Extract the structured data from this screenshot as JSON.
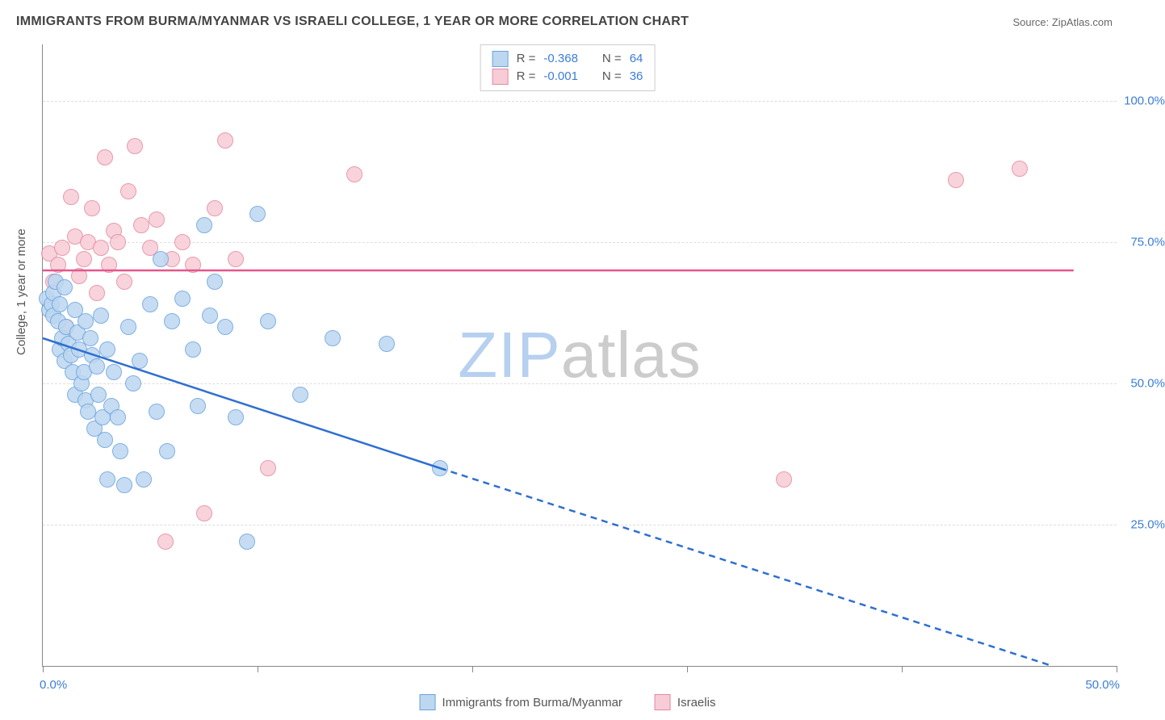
{
  "title": "IMMIGRANTS FROM BURMA/MYANMAR VS ISRAELI COLLEGE, 1 YEAR OR MORE CORRELATION CHART",
  "source_label": "Source: ",
  "source_name": "ZipAtlas.com",
  "y_axis_title": "College, 1 year or more",
  "watermark_zip": "ZIP",
  "watermark_atlas": "atlas",
  "watermark_colors": {
    "zip": "#b7d0ef",
    "atlas": "#cccccc"
  },
  "chart": {
    "type": "scatter",
    "background_color": "#ffffff",
    "grid_color": "#dddddd",
    "axis_color": "#888888",
    "xlim": [
      0,
      50
    ],
    "ylim": [
      0,
      110
    ],
    "x_ticks": [
      0,
      10,
      20,
      30,
      40,
      50
    ],
    "x_tick_labels": {
      "0": "0.0%",
      "50": "50.0%"
    },
    "y_ticks": [
      25,
      50,
      75,
      100
    ],
    "y_tick_labels": {
      "25": "25.0%",
      "50": "50.0%",
      "75": "75.0%",
      "100": "100.0%"
    },
    "marker_radius": 9,
    "series": {
      "burma": {
        "label": "Immigrants from Burma/Myanmar",
        "fill": "#bdd7f0",
        "stroke": "#6aa3de",
        "R_label": "R = ",
        "R_value": "-0.368",
        "N_label": "N = ",
        "N_value": "64",
        "trend": {
          "solid": {
            "x1": 0,
            "y1": 58,
            "x2": 18.5,
            "y2": 35
          },
          "dashed": {
            "x1": 18.5,
            "y1": 35,
            "x2": 47,
            "y2": 0
          },
          "color": "#2f6fd0",
          "width": 2.5
        },
        "points": [
          [
            0.2,
            65
          ],
          [
            0.3,
            63
          ],
          [
            0.4,
            64
          ],
          [
            0.5,
            62
          ],
          [
            0.5,
            66
          ],
          [
            0.6,
            68
          ],
          [
            0.7,
            61
          ],
          [
            0.8,
            64
          ],
          [
            0.8,
            56
          ],
          [
            0.9,
            58
          ],
          [
            1.0,
            67
          ],
          [
            1.0,
            54
          ],
          [
            1.1,
            60
          ],
          [
            1.2,
            57
          ],
          [
            1.3,
            55
          ],
          [
            1.4,
            52
          ],
          [
            1.5,
            63
          ],
          [
            1.5,
            48
          ],
          [
            1.6,
            59
          ],
          [
            1.7,
            56
          ],
          [
            1.8,
            50
          ],
          [
            1.9,
            52
          ],
          [
            2.0,
            61
          ],
          [
            2.0,
            47
          ],
          [
            2.1,
            45
          ],
          [
            2.2,
            58
          ],
          [
            2.3,
            55
          ],
          [
            2.4,
            42
          ],
          [
            2.5,
            53
          ],
          [
            2.6,
            48
          ],
          [
            2.7,
            62
          ],
          [
            2.8,
            44
          ],
          [
            2.9,
            40
          ],
          [
            3.0,
            33
          ],
          [
            3.0,
            56
          ],
          [
            3.2,
            46
          ],
          [
            3.3,
            52
          ],
          [
            3.5,
            44
          ],
          [
            3.6,
            38
          ],
          [
            3.8,
            32
          ],
          [
            4.0,
            60
          ],
          [
            4.2,
            50
          ],
          [
            4.5,
            54
          ],
          [
            4.7,
            33
          ],
          [
            5.0,
            64
          ],
          [
            5.3,
            45
          ],
          [
            5.5,
            72
          ],
          [
            5.8,
            38
          ],
          [
            6.0,
            61
          ],
          [
            6.5,
            65
          ],
          [
            7.0,
            56
          ],
          [
            7.2,
            46
          ],
          [
            7.5,
            78
          ],
          [
            7.8,
            62
          ],
          [
            8.0,
            68
          ],
          [
            8.5,
            60
          ],
          [
            9.0,
            44
          ],
          [
            9.5,
            22
          ],
          [
            10.0,
            80
          ],
          [
            10.5,
            61
          ],
          [
            12.0,
            48
          ],
          [
            13.5,
            58
          ],
          [
            16.0,
            57
          ],
          [
            18.5,
            35
          ]
        ]
      },
      "israelis": {
        "label": "Israelis",
        "fill": "#f7ccd6",
        "stroke": "#e48aa1",
        "R_label": "R = ",
        "R_value": "-0.001",
        "N_label": "N = ",
        "N_value": "36",
        "trend": {
          "solid": {
            "x1": 0,
            "y1": 70,
            "x2": 48,
            "y2": 70
          },
          "color": "#e6568a",
          "width": 2.5
        },
        "points": [
          [
            0.3,
            73
          ],
          [
            0.5,
            68
          ],
          [
            0.7,
            71
          ],
          [
            0.9,
            74
          ],
          [
            1.1,
            60
          ],
          [
            1.3,
            83
          ],
          [
            1.5,
            76
          ],
          [
            1.7,
            69
          ],
          [
            1.9,
            72
          ],
          [
            2.1,
            75
          ],
          [
            2.3,
            81
          ],
          [
            2.5,
            66
          ],
          [
            2.7,
            74
          ],
          [
            2.9,
            90
          ],
          [
            3.1,
            71
          ],
          [
            3.3,
            77
          ],
          [
            3.5,
            75
          ],
          [
            3.8,
            68
          ],
          [
            4.0,
            84
          ],
          [
            4.3,
            92
          ],
          [
            4.6,
            78
          ],
          [
            5.0,
            74
          ],
          [
            5.3,
            79
          ],
          [
            5.7,
            22
          ],
          [
            6.0,
            72
          ],
          [
            6.5,
            75
          ],
          [
            7.0,
            71
          ],
          [
            7.5,
            27
          ],
          [
            8.0,
            81
          ],
          [
            8.5,
            93
          ],
          [
            9.0,
            72
          ],
          [
            10.5,
            35
          ],
          [
            14.5,
            87
          ],
          [
            34.5,
            33
          ],
          [
            42.5,
            86
          ],
          [
            45.5,
            88
          ]
        ]
      }
    }
  },
  "legend_top": {
    "border_color": "#cccccc",
    "value_color": "#3b7dd8",
    "text_color": "#555555"
  },
  "legend_bottom": {
    "text_color": "#555555"
  }
}
